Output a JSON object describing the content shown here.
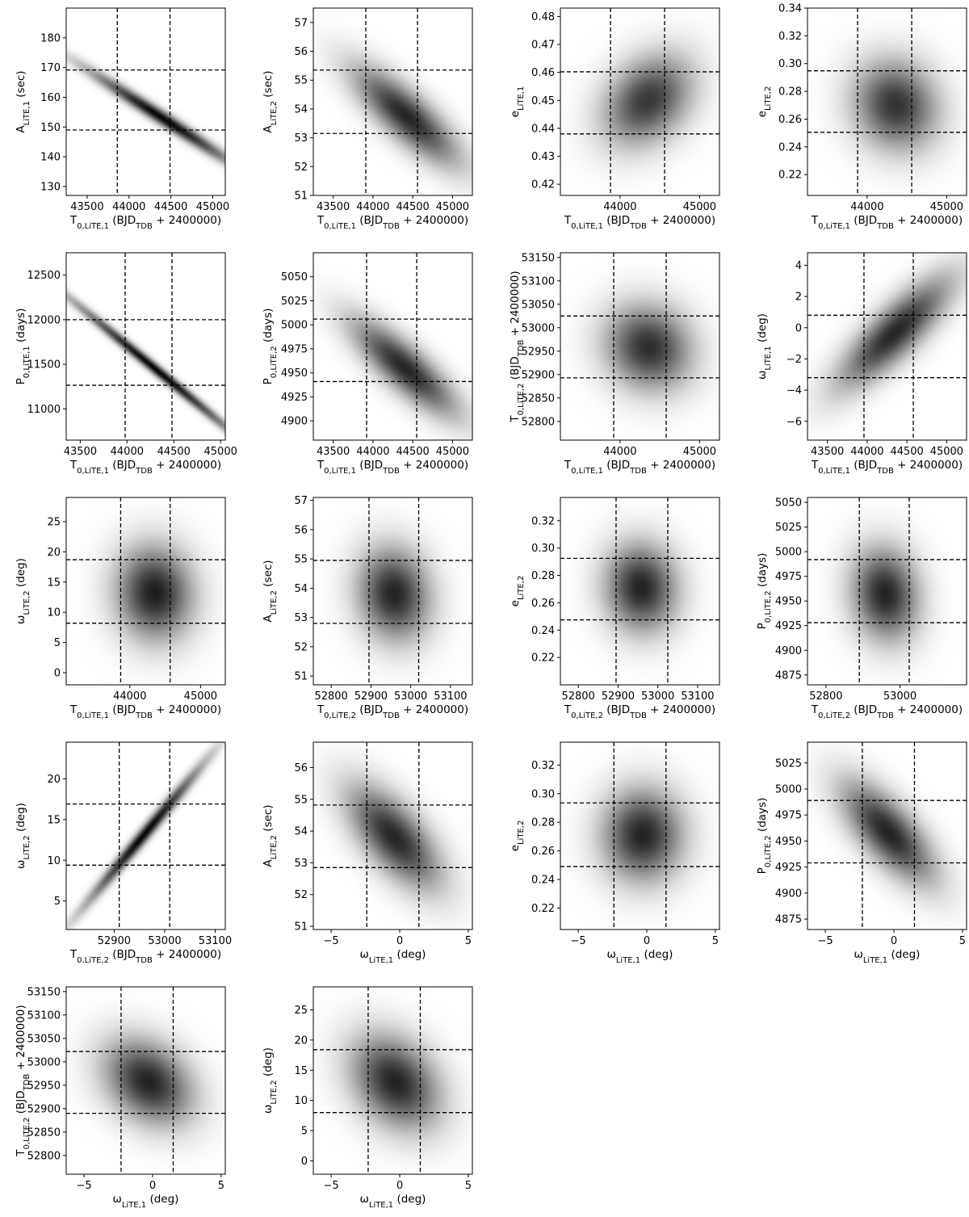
{
  "chart_data": [
    {
      "type": "heatmap",
      "xlabel": "T0,LiTE,1 (BJDTDB + 2400000)",
      "ylabel": "ALiTE,1 (sec)",
      "xlim": [
        43250,
        45150
      ],
      "ylim": [
        127,
        190
      ],
      "xticks": [
        43500,
        44000,
        44500,
        45000
      ],
      "yticks": [
        130,
        140,
        150,
        160,
        170,
        180
      ],
      "vlines": [
        43860,
        44490
      ],
      "hlines": [
        149,
        169.2
      ],
      "center": [
        44400,
        153
      ],
      "sigma": [
        600,
        11
      ],
      "rho": -0.985,
      "peak": 0.98
    },
    {
      "type": "heatmap",
      "xlabel": "T0,LiTE,1 (BJDTDB + 2400000)",
      "ylabel": "ALiTE,2 (sec)",
      "xlim": [
        43250,
        45250
      ],
      "ylim": [
        51,
        57.5
      ],
      "xticks": [
        43500,
        44000,
        44500,
        45000
      ],
      "yticks": [
        51,
        52,
        53,
        54,
        55,
        56,
        57
      ],
      "vlines": [
        43910,
        44560
      ],
      "hlines": [
        53.15,
        55.35
      ],
      "center": [
        44420,
        53.75
      ],
      "sigma": [
        450,
        1.15
      ],
      "rho": -0.8,
      "peak": 0.85
    },
    {
      "type": "heatmap",
      "xlabel": "T0,LiTE,1 (BJDTDB + 2400000)",
      "ylabel": "eLiTE,1",
      "xlim": [
        43250,
        45250
      ],
      "ylim": [
        0.416,
        0.483
      ],
      "xticks": [
        44000,
        45000
      ],
      "yticks": [
        0.42,
        0.43,
        0.44,
        0.45,
        0.46,
        0.47,
        0.48
      ],
      "vlines": [
        43880,
        44560
      ],
      "hlines": [
        0.438,
        0.4602
      ],
      "center": [
        44350,
        0.45
      ],
      "sigma": [
        380,
        0.011
      ],
      "rho": 0.3,
      "peak": 0.78
    },
    {
      "type": "heatmap",
      "xlabel": "T0,LiTE,1 (BJDTDB + 2400000)",
      "ylabel": "eLiTE,2",
      "xlim": [
        43250,
        45250
      ],
      "ylim": [
        0.205,
        0.34
      ],
      "xticks": [
        44000,
        45000
      ],
      "yticks": [
        0.22,
        0.24,
        0.26,
        0.28,
        0.3,
        0.32,
        0.34
      ],
      "vlines": [
        43880,
        44560
      ],
      "hlines": [
        0.2505,
        0.2948
      ],
      "center": [
        44360,
        0.27
      ],
      "sigma": [
        360,
        0.022
      ],
      "rho": -0.1,
      "peak": 0.8
    },
    {
      "type": "heatmap",
      "xlabel": "T0,LiTE,1 (BJDTDB + 2400000)",
      "ylabel": "P0,LiTE,1 (days)",
      "xlim": [
        43350,
        45050
      ],
      "ylim": [
        10650,
        12750
      ],
      "xticks": [
        43500,
        44000,
        44500,
        45000
      ],
      "yticks": [
        11000,
        11500,
        12000,
        12500
      ],
      "vlines": [
        43980,
        44480
      ],
      "hlines": [
        11265,
        12000
      ],
      "center": [
        44300,
        11450
      ],
      "sigma": [
        600,
        520
      ],
      "rho": -0.995,
      "peak": 0.98
    },
    {
      "type": "heatmap",
      "xlabel": "T0,LiTE,1 (BJDTDB + 2400000)",
      "ylabel": "P0,LiTE,2 (days)",
      "xlim": [
        43250,
        45250
      ],
      "ylim": [
        4880,
        5075
      ],
      "xticks": [
        43500,
        44000,
        44500,
        45000
      ],
      "yticks": [
        4900,
        4925,
        4950,
        4975,
        5000,
        5025,
        5050
      ],
      "vlines": [
        43920,
        44550
      ],
      "hlines": [
        4941,
        5006
      ],
      "center": [
        44400,
        4955
      ],
      "sigma": [
        450,
        34
      ],
      "rho": -0.82,
      "peak": 0.85
    },
    {
      "type": "heatmap",
      "xlabel": "T0,LiTE,1 (BJDTDB + 2400000)",
      "ylabel": "T0,LiTE,2 (BJDTDB + 2400000)",
      "xlim": [
        43250,
        45250
      ],
      "ylim": [
        52760,
        53160
      ],
      "xticks": [
        44000,
        45000
      ],
      "yticks": [
        52800,
        52850,
        52900,
        52950,
        53000,
        53050,
        53100,
        53150
      ],
      "vlines": [
        43920,
        44580
      ],
      "hlines": [
        52893,
        53025
      ],
      "center": [
        44360,
        52958
      ],
      "sigma": [
        370,
        62
      ],
      "rho": -0.1,
      "peak": 0.82
    },
    {
      "type": "heatmap",
      "xlabel": "T0,LiTE,1 (BJDTDB + 2400000)",
      "ylabel": "ωLiTE,1 (deg)",
      "xlim": [
        43250,
        45250
      ],
      "ylim": [
        -7.2,
        4.8
      ],
      "xticks": [
        43500,
        44000,
        44500,
        45000
      ],
      "yticks": [
        -6,
        -4,
        -2,
        0,
        2,
        4
      ],
      "vlines": [
        43960,
        44580
      ],
      "hlines": [
        -3.2,
        0.8
      ],
      "center": [
        44350,
        -0.3
      ],
      "sigma": [
        480,
        2.4
      ],
      "rho": 0.82,
      "peak": 0.85
    },
    {
      "type": "heatmap",
      "xlabel": "T0,LiTE,1 (BJDTDB + 2400000)",
      "ylabel": "ωLiTE,2 (deg)",
      "xlim": [
        43100,
        45350
      ],
      "ylim": [
        -2,
        29
      ],
      "xticks": [
        44000,
        45000
      ],
      "yticks": [
        0,
        5,
        10,
        15,
        20,
        25
      ],
      "vlines": [
        43870,
        44570
      ],
      "hlines": [
        8.2,
        18.7
      ],
      "center": [
        44350,
        13.2
      ],
      "sigma": [
        370,
        5.3
      ],
      "rho": -0.05,
      "peak": 0.88
    },
    {
      "type": "heatmap",
      "xlabel": "T0,LiTE,2 (BJDTDB + 2400000)",
      "ylabel": "ALiTE,2 (sec)",
      "xlim": [
        52755,
        53155
      ],
      "ylim": [
        50.7,
        57.1
      ],
      "xticks": [
        52800,
        52900,
        53000,
        53100
      ],
      "yticks": [
        51,
        52,
        53,
        54,
        55,
        56,
        57
      ],
      "vlines": [
        52895,
        53020
      ],
      "hlines": [
        52.8,
        54.95
      ],
      "center": [
        52958,
        53.8
      ],
      "sigma": [
        62,
        1.08
      ],
      "rho": -0.1,
      "peak": 0.86
    },
    {
      "type": "heatmap",
      "xlabel": "T0,LiTE,2 (BJDTDB + 2400000)",
      "ylabel": "eLiTE,2",
      "xlim": [
        52755,
        53155
      ],
      "ylim": [
        0.2,
        0.337
      ],
      "xticks": [
        52800,
        52900,
        53000,
        53100
      ],
      "yticks": [
        0.22,
        0.24,
        0.26,
        0.28,
        0.3,
        0.32
      ],
      "vlines": [
        52895,
        53025
      ],
      "hlines": [
        0.2475,
        0.2925
      ],
      "center": [
        52958,
        0.271
      ],
      "sigma": [
        62,
        0.022
      ],
      "rho": -0.05,
      "peak": 0.86
    },
    {
      "type": "heatmap",
      "xlabel": "T0,LiTE,2 (BJDTDB + 2400000)",
      "ylabel": "P0,LiTE,2 (days)",
      "xlim": [
        52750,
        53180
      ],
      "ylim": [
        4865,
        5055
      ],
      "xticks": [
        52800,
        53000
      ],
      "yticks": [
        4875,
        4900,
        4925,
        4950,
        4975,
        5000,
        5025,
        5050
      ],
      "vlines": [
        52890,
        53025
      ],
      "hlines": [
        4928,
        4992
      ],
      "center": [
        52960,
        4957
      ],
      "sigma": [
        62,
        32
      ],
      "rho": -0.1,
      "peak": 0.86
    },
    {
      "type": "heatmap",
      "xlabel": "T0,LiTE,2 (BJDTDB + 2400000)",
      "ylabel": "ωLiTE,2 (deg)",
      "xlim": [
        52805,
        53120
      ],
      "ylim": [
        1.5,
        24.5
      ],
      "xticks": [
        52900,
        53000,
        53100
      ],
      "yticks": [
        5,
        10,
        15,
        20
      ],
      "vlines": [
        52910,
        53010
      ],
      "hlines": [
        9.4,
        16.9
      ],
      "center": [
        52960,
        13.2
      ],
      "sigma": [
        78,
        5.8
      ],
      "rho": 0.99,
      "peak": 0.98
    },
    {
      "type": "heatmap",
      "xlabel": "ωLiTE,1 (deg)",
      "ylabel": "ALiTE,2 (sec)",
      "xlim": [
        -6.3,
        5.3
      ],
      "ylim": [
        50.9,
        56.8
      ],
      "xticks": [
        -5,
        0,
        5
      ],
      "yticks": [
        51,
        52,
        53,
        54,
        55,
        56
      ],
      "vlines": [
        -2.4,
        1.4
      ],
      "hlines": [
        52.85,
        54.82
      ],
      "center": [
        -0.4,
        53.8
      ],
      "sigma": [
        2.3,
        1.1
      ],
      "rho": -0.65,
      "peak": 0.85
    },
    {
      "type": "heatmap",
      "xlabel": "ωLiTE,1 (deg)",
      "ylabel": "eLiTE,2",
      "xlim": [
        -6.3,
        5.3
      ],
      "ylim": [
        0.205,
        0.336
      ],
      "xticks": [
        -5,
        0,
        5
      ],
      "yticks": [
        0.22,
        0.24,
        0.26,
        0.28,
        0.3,
        0.32
      ],
      "vlines": [
        -2.4,
        1.4
      ],
      "hlines": [
        0.249,
        0.2935
      ],
      "center": [
        -0.3,
        0.271
      ],
      "sigma": [
        2.0,
        0.022
      ],
      "rho": 0.0,
      "peak": 0.86
    },
    {
      "type": "heatmap",
      "xlabel": "ωLiTE,1 (deg)",
      "ylabel": "P0,LiTE,2 (days)",
      "xlim": [
        -6.3,
        5.3
      ],
      "ylim": [
        4865,
        5045
      ],
      "xticks": [
        -5,
        0,
        5
      ],
      "yticks": [
        4875,
        4900,
        4925,
        4950,
        4975,
        5000,
        5025
      ],
      "vlines": [
        -2.3,
        1.5
      ],
      "hlines": [
        4929,
        4989
      ],
      "center": [
        -0.4,
        4958
      ],
      "sigma": [
        2.3,
        33
      ],
      "rho": -0.7,
      "peak": 0.86
    },
    {
      "type": "heatmap",
      "xlabel": "ωLiTE,1 (deg)",
      "ylabel": "T0,LiTE,2 (BJDTDB + 2400000)",
      "xlim": [
        -6.3,
        5.3
      ],
      "ylim": [
        52760,
        53160
      ],
      "xticks": [
        -5,
        0,
        5
      ],
      "yticks": [
        52800,
        52850,
        52900,
        52950,
        53000,
        53050,
        53100,
        53150
      ],
      "vlines": [
        -2.3,
        1.5
      ],
      "hlines": [
        52890,
        53022
      ],
      "center": [
        -0.3,
        52957
      ],
      "sigma": [
        2.2,
        62
      ],
      "rho": -0.3,
      "peak": 0.86
    },
    {
      "type": "heatmap",
      "xlabel": "ωLiTE,1 (deg)",
      "ylabel": "ωLiTE,2 (deg)",
      "xlim": [
        -6.3,
        5.3
      ],
      "ylim": [
        -2.2,
        28.8
      ],
      "xticks": [
        -5,
        0,
        5
      ],
      "yticks": [
        0,
        5,
        10,
        15,
        20,
        25
      ],
      "vlines": [
        -2.3,
        1.5
      ],
      "hlines": [
        8.0,
        18.4
      ],
      "center": [
        -0.3,
        13.0
      ],
      "sigma": [
        2.2,
        5.3
      ],
      "rho": -0.3,
      "peak": 0.86
    }
  ]
}
